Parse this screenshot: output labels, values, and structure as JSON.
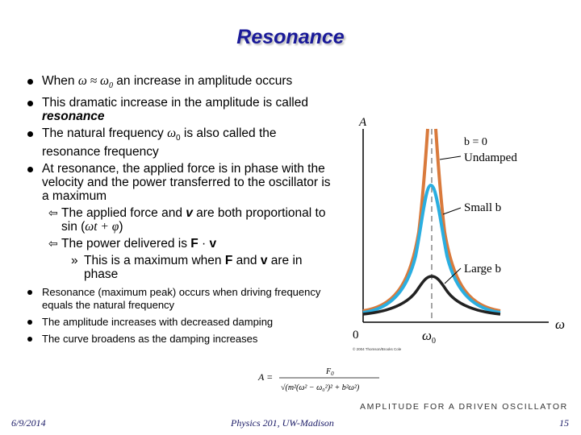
{
  "title": "Resonance",
  "bullets": [
    {
      "pre": "When ",
      "sym": "ω ≈ ω",
      "sub": "0",
      "post": " an increase in amplitude occurs"
    },
    {
      "pre": "This dramatic increase in the amplitude is called ",
      "em": "resonance"
    },
    {
      "pre": "The natural frequency ",
      "sym": "ω",
      "sub": "0",
      "post": " is also called the resonance frequency"
    },
    {
      "pre": "At resonance, the applied force is in phase with the velocity and the power transferred to the oscillator is a maximum"
    }
  ],
  "sub_bullets": [
    {
      "pre": "The applied force and ",
      "em": "v",
      "mid": " are both proportional to sin (",
      "sym": "ωt + φ",
      "post": ")"
    },
    {
      "pre": "The power delivered is ",
      "bold1": "F",
      "dot": " · ",
      "bold2": "v"
    }
  ],
  "sub_sub_bullet": {
    "marker": "»",
    "pre": "This is a maximum when ",
    "bold1": "F",
    "mid": " and ",
    "bold2": "v",
    "post": " are in phase"
  },
  "small_bullets": [
    "Resonance (maximum peak) occurs when driving frequency equals the natural frequency",
    "The amplitude increases with decreased damping",
    "The curve broadens as the damping increases"
  ],
  "graph": {
    "y_axis_label": "A",
    "x_axis_label": "ω",
    "origin_label": "0",
    "peak_label": "ω",
    "peak_sub": "0",
    "copyright": "© 2004 Thomson/Brooks Cole",
    "curves": [
      {
        "label1": "b = 0",
        "label2": "Undamped",
        "color": "#d97a3c"
      },
      {
        "label1": "Small b",
        "color": "#2aaee0"
      },
      {
        "label1": "Large b",
        "color": "#222222"
      }
    ]
  },
  "formula": {
    "lhs": "A =",
    "numerator": "F",
    "num_sub": "0",
    "denominator": "√(m²(ω² − ω₀²)² + b²ω²)"
  },
  "caption": "AMPLITUDE FOR A DRIVEN OSCILLATOR",
  "footer": {
    "date": "6/9/2014",
    "course": "Physics 201, UW-Madison",
    "page": "15"
  }
}
